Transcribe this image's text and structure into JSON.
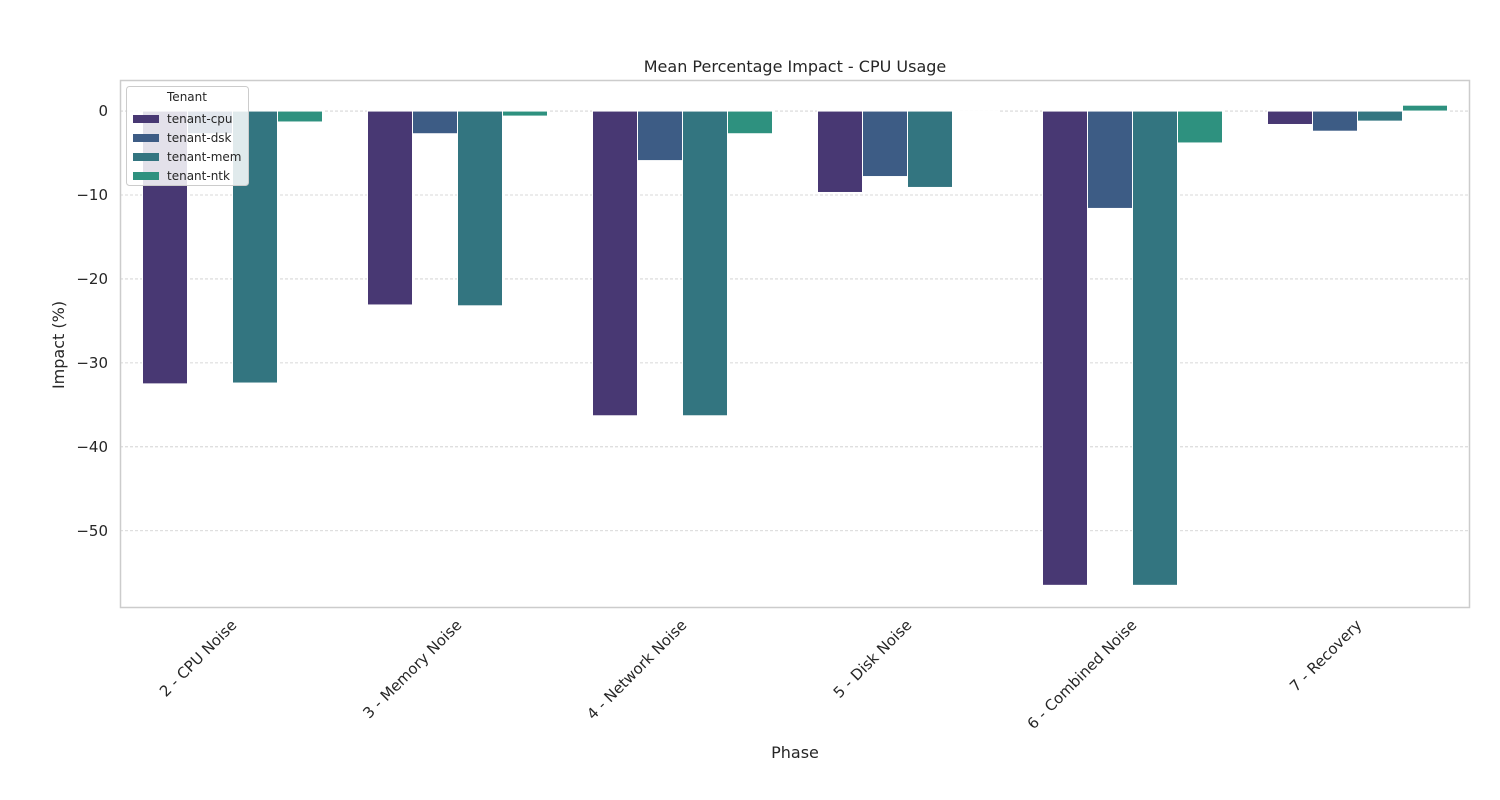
{
  "chart_data": {
    "type": "bar",
    "title": "Mean Percentage Impact - CPU Usage",
    "xlabel": "Phase",
    "ylabel": "Impact (%)",
    "categories": [
      "2 - CPU Noise",
      "3 - Memory Noise",
      "4 - Network Noise",
      "5 - Disk Noise",
      "6 - Combined Noise",
      "7 - Recovery"
    ],
    "ylim": [
      -59.2,
      3.7
    ],
    "yticks": [
      0,
      -10,
      -20,
      -30,
      -40,
      -50
    ],
    "grid": "horizontal",
    "legend": {
      "title": "Tenant",
      "placement": "top-left"
    },
    "series": [
      {
        "name": "tenant-cpu",
        "color": "#483873",
        "values": [
          -32.5,
          -23.1,
          -36.3,
          -9.7,
          -56.5,
          -1.6
        ]
      },
      {
        "name": "tenant-dsk",
        "color": "#3d5c85",
        "values": [
          -2.7,
          -2.7,
          -5.9,
          -7.8,
          -11.6,
          -2.4
        ]
      },
      {
        "name": "tenant-mem",
        "color": "#337580",
        "values": [
          -32.4,
          -23.2,
          -36.3,
          -9.1,
          -56.5,
          -1.2
        ]
      },
      {
        "name": "tenant-ntk",
        "color": "#2e917f",
        "values": [
          -1.3,
          -0.6,
          -2.7,
          0.0,
          -3.8,
          0.7
        ]
      }
    ]
  }
}
